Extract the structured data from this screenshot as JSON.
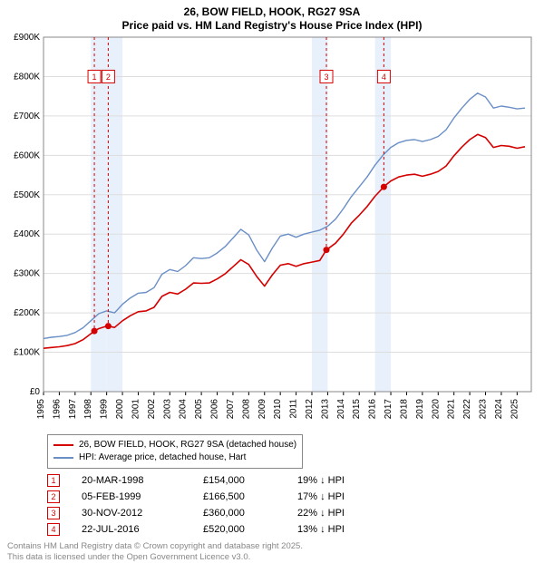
{
  "titles": {
    "line1": "26, BOW FIELD, HOOK, RG27 9SA",
    "line2": "Price paid vs. HM Land Registry's House Price Index (HPI)"
  },
  "chart": {
    "type": "line",
    "background_color": "#ffffff",
    "grid_color": "#dddddd",
    "highlight_band_color": "#e8f0fb",
    "x": {
      "min": 1995,
      "max": 2025.9,
      "ticks": [
        1995,
        1996,
        1997,
        1998,
        1999,
        2000,
        2001,
        2002,
        2003,
        2004,
        2005,
        2006,
        2007,
        2008,
        2009,
        2010,
        2011,
        2012,
        2013,
        2014,
        2015,
        2016,
        2017,
        2018,
        2019,
        2020,
        2021,
        2022,
        2023,
        2024,
        2025
      ]
    },
    "y": {
      "min": 0,
      "max": 900000,
      "ticks": [
        0,
        100000,
        200000,
        300000,
        400000,
        500000,
        600000,
        700000,
        800000,
        900000
      ],
      "tick_labels": [
        "£0",
        "£100K",
        "£200K",
        "£300K",
        "£400K",
        "£500K",
        "£600K",
        "£700K",
        "£800K",
        "£900K"
      ]
    },
    "series": [
      {
        "name": "HPI: Average price, detached house, Hart",
        "color": "#6a8fc6",
        "width": 1.4,
        "data": [
          [
            1995.0,
            135000
          ],
          [
            1995.5,
            138000
          ],
          [
            1996.0,
            140000
          ],
          [
            1996.5,
            143000
          ],
          [
            1997.0,
            150000
          ],
          [
            1997.5,
            162000
          ],
          [
            1998.0,
            180000
          ],
          [
            1998.5,
            198000
          ],
          [
            1999.0,
            205000
          ],
          [
            1999.5,
            200000
          ],
          [
            2000.0,
            222000
          ],
          [
            2000.5,
            238000
          ],
          [
            2001.0,
            250000
          ],
          [
            2001.5,
            252000
          ],
          [
            2002.0,
            264000
          ],
          [
            2002.5,
            298000
          ],
          [
            2003.0,
            310000
          ],
          [
            2003.5,
            305000
          ],
          [
            2004.0,
            320000
          ],
          [
            2004.5,
            340000
          ],
          [
            2005.0,
            338000
          ],
          [
            2005.5,
            340000
          ],
          [
            2006.0,
            352000
          ],
          [
            2006.5,
            368000
          ],
          [
            2007.0,
            390000
          ],
          [
            2007.5,
            412000
          ],
          [
            2008.0,
            398000
          ],
          [
            2008.5,
            360000
          ],
          [
            2009.0,
            330000
          ],
          [
            2009.5,
            365000
          ],
          [
            2010.0,
            395000
          ],
          [
            2010.5,
            400000
          ],
          [
            2011.0,
            392000
          ],
          [
            2011.5,
            400000
          ],
          [
            2012.0,
            405000
          ],
          [
            2012.5,
            410000
          ],
          [
            2013.0,
            420000
          ],
          [
            2013.5,
            438000
          ],
          [
            2014.0,
            465000
          ],
          [
            2014.5,
            495000
          ],
          [
            2015.0,
            520000
          ],
          [
            2015.5,
            545000
          ],
          [
            2016.0,
            575000
          ],
          [
            2016.5,
            600000
          ],
          [
            2017.0,
            620000
          ],
          [
            2017.5,
            632000
          ],
          [
            2018.0,
            638000
          ],
          [
            2018.5,
            640000
          ],
          [
            2019.0,
            635000
          ],
          [
            2019.5,
            640000
          ],
          [
            2020.0,
            648000
          ],
          [
            2020.5,
            665000
          ],
          [
            2021.0,
            695000
          ],
          [
            2021.5,
            720000
          ],
          [
            2022.0,
            742000
          ],
          [
            2022.5,
            758000
          ],
          [
            2023.0,
            748000
          ],
          [
            2023.5,
            720000
          ],
          [
            2024.0,
            725000
          ],
          [
            2024.5,
            722000
          ],
          [
            2025.0,
            718000
          ],
          [
            2025.5,
            720000
          ]
        ]
      },
      {
        "name": "26, BOW FIELD, HOOK, RG27 9SA (detached house)",
        "color": "#d40000",
        "width": 1.6,
        "data": [
          [
            1995.0,
            110000
          ],
          [
            1995.5,
            112000
          ],
          [
            1996.0,
            114000
          ],
          [
            1996.5,
            117000
          ],
          [
            1997.0,
            122000
          ],
          [
            1997.5,
            132000
          ],
          [
            1998.0,
            147000
          ],
          [
            1998.22,
            154000
          ],
          [
            1998.5,
            160000
          ],
          [
            1999.0,
            166500
          ],
          [
            1999.1,
            166500
          ],
          [
            1999.5,
            163000
          ],
          [
            2000.0,
            180000
          ],
          [
            2000.5,
            193000
          ],
          [
            2001.0,
            203000
          ],
          [
            2001.5,
            205000
          ],
          [
            2002.0,
            214000
          ],
          [
            2002.5,
            242000
          ],
          [
            2003.0,
            252000
          ],
          [
            2003.5,
            248000
          ],
          [
            2004.0,
            260000
          ],
          [
            2004.5,
            276000
          ],
          [
            2005.0,
            275000
          ],
          [
            2005.5,
            276000
          ],
          [
            2006.0,
            286000
          ],
          [
            2006.5,
            299000
          ],
          [
            2007.0,
            317000
          ],
          [
            2007.5,
            335000
          ],
          [
            2008.0,
            323000
          ],
          [
            2008.5,
            293000
          ],
          [
            2009.0,
            268000
          ],
          [
            2009.5,
            297000
          ],
          [
            2010.0,
            321000
          ],
          [
            2010.5,
            325000
          ],
          [
            2011.0,
            318000
          ],
          [
            2011.5,
            325000
          ],
          [
            2012.0,
            329000
          ],
          [
            2012.5,
            333000
          ],
          [
            2012.92,
            360000
          ],
          [
            2013.0,
            362000
          ],
          [
            2013.5,
            377000
          ],
          [
            2014.0,
            400000
          ],
          [
            2014.5,
            428000
          ],
          [
            2015.0,
            448000
          ],
          [
            2015.5,
            470000
          ],
          [
            2016.0,
            496000
          ],
          [
            2016.56,
            520000
          ],
          [
            2016.7,
            525000
          ],
          [
            2017.0,
            535000
          ],
          [
            2017.5,
            545000
          ],
          [
            2018.0,
            550000
          ],
          [
            2018.5,
            552000
          ],
          [
            2019.0,
            547000
          ],
          [
            2019.5,
            552000
          ],
          [
            2020.0,
            559000
          ],
          [
            2020.5,
            573000
          ],
          [
            2021.0,
            599000
          ],
          [
            2021.5,
            621000
          ],
          [
            2022.0,
            640000
          ],
          [
            2022.5,
            653000
          ],
          [
            2023.0,
            645000
          ],
          [
            2023.5,
            620000
          ],
          [
            2024.0,
            625000
          ],
          [
            2024.5,
            623000
          ],
          [
            2025.0,
            618000
          ],
          [
            2025.5,
            622000
          ]
        ]
      }
    ],
    "sale_markers": [
      {
        "n": 1,
        "year": 1998.22,
        "value": 154000
      },
      {
        "n": 2,
        "year": 1999.1,
        "value": 166500
      },
      {
        "n": 3,
        "year": 2012.92,
        "value": 360000
      },
      {
        "n": 4,
        "year": 2016.56,
        "value": 520000
      }
    ],
    "marker_box": {
      "border_color": "#d40000",
      "text_color": "#d40000",
      "fill": "#ffffff",
      "y_value": 800000
    }
  },
  "legend": {
    "items": [
      {
        "color": "#d40000",
        "label": "26, BOW FIELD, HOOK, RG27 9SA (detached house)"
      },
      {
        "color": "#6a8fc6",
        "label": "HPI: Average price, detached house, Hart"
      }
    ]
  },
  "sales": [
    {
      "n": "1",
      "date": "20-MAR-1998",
      "price": "£154,000",
      "diff": "19% ↓ HPI"
    },
    {
      "n": "2",
      "date": "05-FEB-1999",
      "price": "£166,500",
      "diff": "17% ↓ HPI"
    },
    {
      "n": "3",
      "date": "30-NOV-2012",
      "price": "£360,000",
      "diff": "22% ↓ HPI"
    },
    {
      "n": "4",
      "date": "22-JUL-2016",
      "price": "£520,000",
      "diff": "13% ↓ HPI"
    }
  ],
  "license": {
    "line1": "Contains HM Land Registry data © Crown copyright and database right 2025.",
    "line2": "This data is licensed under the Open Government Licence v3.0."
  },
  "colors": {
    "marker_border": "#d40000",
    "marker_text": "#d40000"
  }
}
